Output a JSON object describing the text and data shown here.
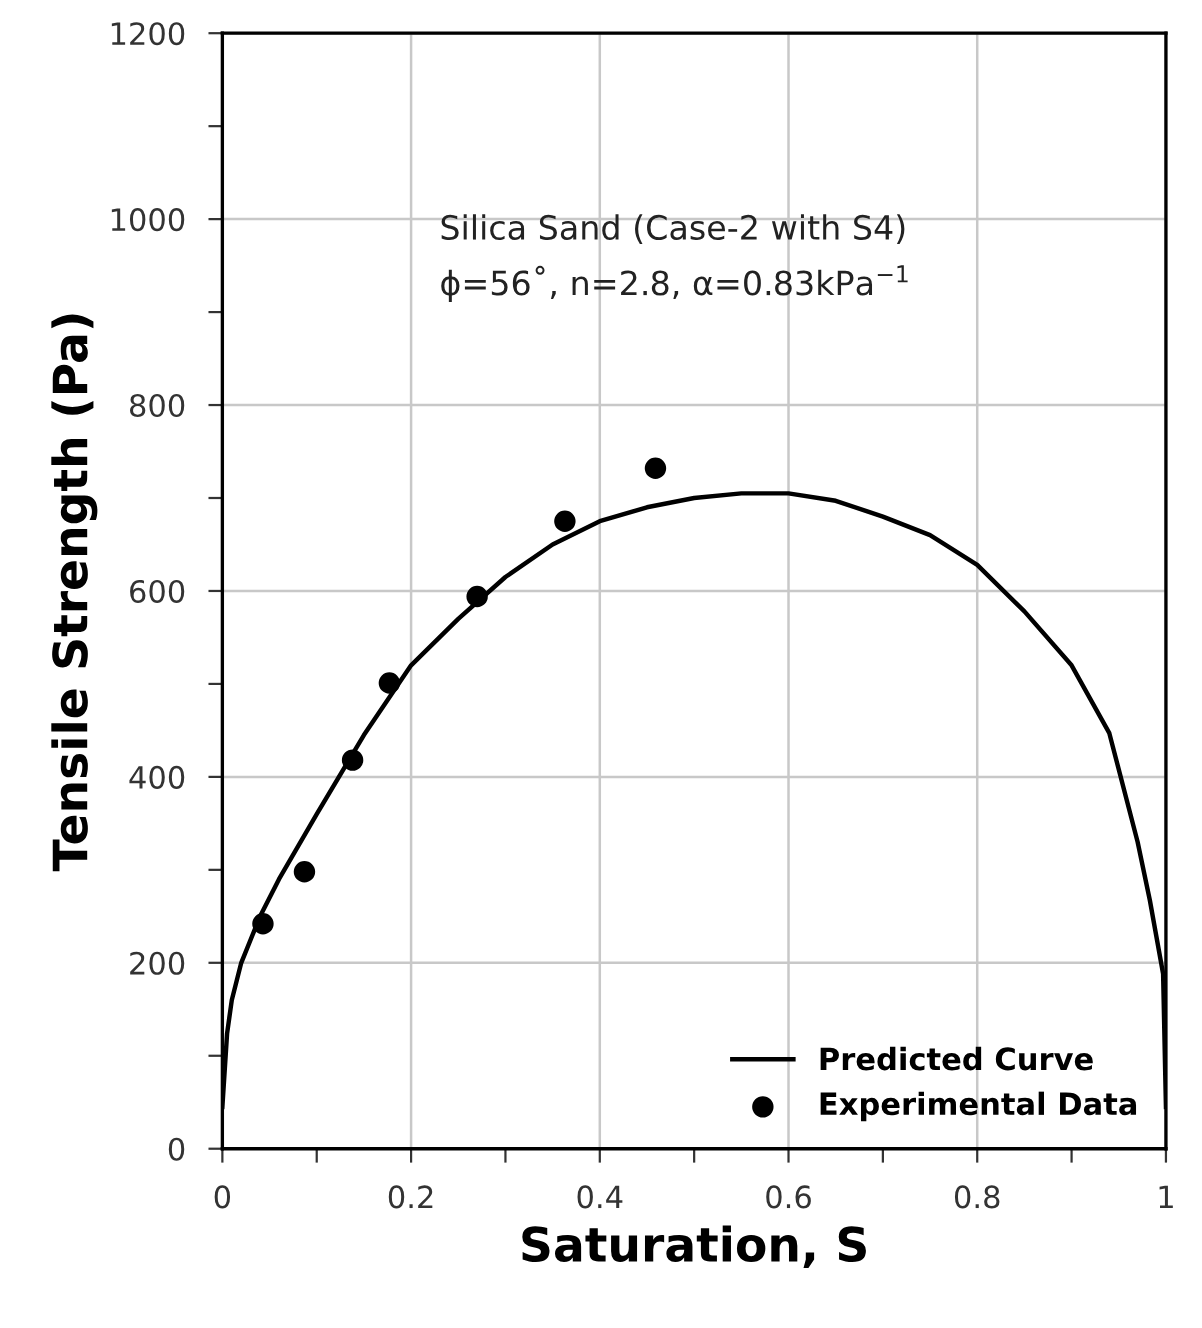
{
  "chart_data": {
    "type": "line",
    "xlabel": "Saturation, S",
    "ylabel": "Tensile Strength (Pa)",
    "annotations": [
      "Silica Sand (Case-2 with S4)",
      "ϕ=56˚, n=2.8, α=0.83kPa$^{−1}$"
    ],
    "xlim": [
      0,
      1
    ],
    "ylim": [
      0,
      1200
    ],
    "xticks": [
      0,
      {
        "value": 0.1,
        "label": null
      },
      0.2,
      {
        "value": 0.3,
        "label": null
      },
      0.4,
      {
        "value": 0.5,
        "label": null
      },
      0.6,
      {
        "value": 0.7,
        "label": null
      },
      0.8,
      {
        "value": 0.9,
        "label": null
      },
      1
    ],
    "yticks": [
      0,
      {
        "value": 100,
        "label": null
      },
      200,
      {
        "value": 300,
        "label": null
      },
      400,
      {
        "value": 500,
        "label": null
      },
      600,
      {
        "value": 700,
        "label": null
      },
      800,
      {
        "value": 900,
        "label": null
      },
      1000,
      {
        "value": 1100,
        "label": null
      },
      1200
    ],
    "grid": true,
    "legend": "bottom right",
    "series": [
      {
        "name": "Predicted Curve",
        "color": "#000000",
        "marker": "none",
        "line_style": "solid",
        "x": [
          0,
          0.005,
          0.01,
          0.02,
          0.04,
          0.06,
          0.1,
          0.15,
          0.2,
          0.25,
          0.3,
          0.35,
          0.4,
          0.45,
          0.5,
          0.55,
          0.6,
          0.65,
          0.7,
          0.75,
          0.8,
          0.85,
          0.9,
          0.94,
          0.97,
          0.983,
          0.997,
          1.0
        ],
        "values": [
          45,
          124,
          160,
          200,
          250,
          290,
          360,
          445,
          520,
          570,
          615,
          650,
          675,
          690,
          700,
          705,
          705,
          697,
          680,
          660,
          628,
          578,
          520,
          447,
          330,
          267,
          188,
          45
        ]
      },
      {
        "name": "Experimental Data",
        "type": "scatter",
        "color": "#000000",
        "marker": "circle",
        "x": [
          0.043,
          0.087,
          0.138,
          0.177,
          0.27,
          0.363,
          0.459
        ],
        "values": [
          242,
          298,
          418,
          501,
          594,
          675,
          732
        ]
      }
    ]
  }
}
